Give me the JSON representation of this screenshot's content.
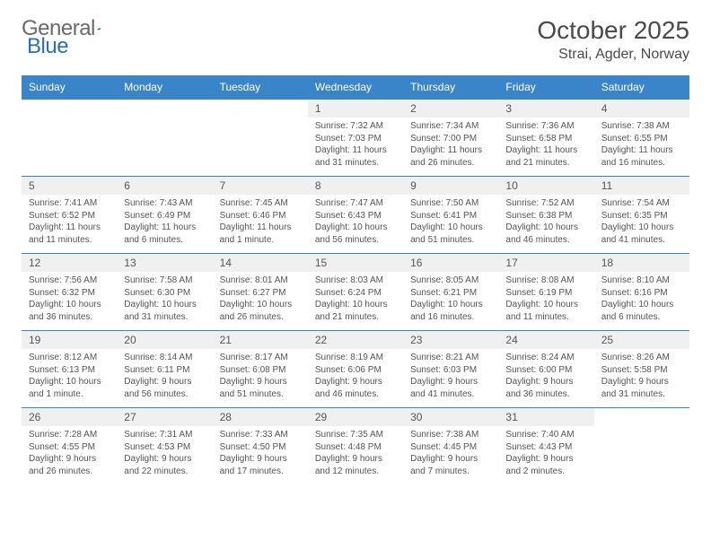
{
  "logo": {
    "part1": "General",
    "part2": "Blue"
  },
  "title": "October 2025",
  "location": "Strai, Agder, Norway",
  "colors": {
    "header_bg": "#3a85c8",
    "header_text": "#ffffff",
    "border": "#3a85c8",
    "daynum_bg": "#f0f0f0",
    "body_text": "#555555",
    "logo_gray": "#6a6a6a",
    "logo_blue": "#2a6fb5",
    "page_bg": "#ffffff"
  },
  "typography": {
    "title_fontsize": 28,
    "location_fontsize": 16,
    "logo_fontsize": 24,
    "header_fontsize": 12,
    "daynum_fontsize": 12,
    "info_fontsize": 10
  },
  "weekdays": [
    "Sunday",
    "Monday",
    "Tuesday",
    "Wednesday",
    "Thursday",
    "Friday",
    "Saturday"
  ],
  "weeks": [
    [
      null,
      null,
      null,
      {
        "n": "1",
        "sr": "Sunrise: 7:32 AM",
        "ss": "Sunset: 7:03 PM",
        "d1": "Daylight: 11 hours",
        "d2": "and 31 minutes."
      },
      {
        "n": "2",
        "sr": "Sunrise: 7:34 AM",
        "ss": "Sunset: 7:00 PM",
        "d1": "Daylight: 11 hours",
        "d2": "and 26 minutes."
      },
      {
        "n": "3",
        "sr": "Sunrise: 7:36 AM",
        "ss": "Sunset: 6:58 PM",
        "d1": "Daylight: 11 hours",
        "d2": "and 21 minutes."
      },
      {
        "n": "4",
        "sr": "Sunrise: 7:38 AM",
        "ss": "Sunset: 6:55 PM",
        "d1": "Daylight: 11 hours",
        "d2": "and 16 minutes."
      }
    ],
    [
      {
        "n": "5",
        "sr": "Sunrise: 7:41 AM",
        "ss": "Sunset: 6:52 PM",
        "d1": "Daylight: 11 hours",
        "d2": "and 11 minutes."
      },
      {
        "n": "6",
        "sr": "Sunrise: 7:43 AM",
        "ss": "Sunset: 6:49 PM",
        "d1": "Daylight: 11 hours",
        "d2": "and 6 minutes."
      },
      {
        "n": "7",
        "sr": "Sunrise: 7:45 AM",
        "ss": "Sunset: 6:46 PM",
        "d1": "Daylight: 11 hours",
        "d2": "and 1 minute."
      },
      {
        "n": "8",
        "sr": "Sunrise: 7:47 AM",
        "ss": "Sunset: 6:43 PM",
        "d1": "Daylight: 10 hours",
        "d2": "and 56 minutes."
      },
      {
        "n": "9",
        "sr": "Sunrise: 7:50 AM",
        "ss": "Sunset: 6:41 PM",
        "d1": "Daylight: 10 hours",
        "d2": "and 51 minutes."
      },
      {
        "n": "10",
        "sr": "Sunrise: 7:52 AM",
        "ss": "Sunset: 6:38 PM",
        "d1": "Daylight: 10 hours",
        "d2": "and 46 minutes."
      },
      {
        "n": "11",
        "sr": "Sunrise: 7:54 AM",
        "ss": "Sunset: 6:35 PM",
        "d1": "Daylight: 10 hours",
        "d2": "and 41 minutes."
      }
    ],
    [
      {
        "n": "12",
        "sr": "Sunrise: 7:56 AM",
        "ss": "Sunset: 6:32 PM",
        "d1": "Daylight: 10 hours",
        "d2": "and 36 minutes."
      },
      {
        "n": "13",
        "sr": "Sunrise: 7:58 AM",
        "ss": "Sunset: 6:30 PM",
        "d1": "Daylight: 10 hours",
        "d2": "and 31 minutes."
      },
      {
        "n": "14",
        "sr": "Sunrise: 8:01 AM",
        "ss": "Sunset: 6:27 PM",
        "d1": "Daylight: 10 hours",
        "d2": "and 26 minutes."
      },
      {
        "n": "15",
        "sr": "Sunrise: 8:03 AM",
        "ss": "Sunset: 6:24 PM",
        "d1": "Daylight: 10 hours",
        "d2": "and 21 minutes."
      },
      {
        "n": "16",
        "sr": "Sunrise: 8:05 AM",
        "ss": "Sunset: 6:21 PM",
        "d1": "Daylight: 10 hours",
        "d2": "and 16 minutes."
      },
      {
        "n": "17",
        "sr": "Sunrise: 8:08 AM",
        "ss": "Sunset: 6:19 PM",
        "d1": "Daylight: 10 hours",
        "d2": "and 11 minutes."
      },
      {
        "n": "18",
        "sr": "Sunrise: 8:10 AM",
        "ss": "Sunset: 6:16 PM",
        "d1": "Daylight: 10 hours",
        "d2": "and 6 minutes."
      }
    ],
    [
      {
        "n": "19",
        "sr": "Sunrise: 8:12 AM",
        "ss": "Sunset: 6:13 PM",
        "d1": "Daylight: 10 hours",
        "d2": "and 1 minute."
      },
      {
        "n": "20",
        "sr": "Sunrise: 8:14 AM",
        "ss": "Sunset: 6:11 PM",
        "d1": "Daylight: 9 hours",
        "d2": "and 56 minutes."
      },
      {
        "n": "21",
        "sr": "Sunrise: 8:17 AM",
        "ss": "Sunset: 6:08 PM",
        "d1": "Daylight: 9 hours",
        "d2": "and 51 minutes."
      },
      {
        "n": "22",
        "sr": "Sunrise: 8:19 AM",
        "ss": "Sunset: 6:06 PM",
        "d1": "Daylight: 9 hours",
        "d2": "and 46 minutes."
      },
      {
        "n": "23",
        "sr": "Sunrise: 8:21 AM",
        "ss": "Sunset: 6:03 PM",
        "d1": "Daylight: 9 hours",
        "d2": "and 41 minutes."
      },
      {
        "n": "24",
        "sr": "Sunrise: 8:24 AM",
        "ss": "Sunset: 6:00 PM",
        "d1": "Daylight: 9 hours",
        "d2": "and 36 minutes."
      },
      {
        "n": "25",
        "sr": "Sunrise: 8:26 AM",
        "ss": "Sunset: 5:58 PM",
        "d1": "Daylight: 9 hours",
        "d2": "and 31 minutes."
      }
    ],
    [
      {
        "n": "26",
        "sr": "Sunrise: 7:28 AM",
        "ss": "Sunset: 4:55 PM",
        "d1": "Daylight: 9 hours",
        "d2": "and 26 minutes."
      },
      {
        "n": "27",
        "sr": "Sunrise: 7:31 AM",
        "ss": "Sunset: 4:53 PM",
        "d1": "Daylight: 9 hours",
        "d2": "and 22 minutes."
      },
      {
        "n": "28",
        "sr": "Sunrise: 7:33 AM",
        "ss": "Sunset: 4:50 PM",
        "d1": "Daylight: 9 hours",
        "d2": "and 17 minutes."
      },
      {
        "n": "29",
        "sr": "Sunrise: 7:35 AM",
        "ss": "Sunset: 4:48 PM",
        "d1": "Daylight: 9 hours",
        "d2": "and 12 minutes."
      },
      {
        "n": "30",
        "sr": "Sunrise: 7:38 AM",
        "ss": "Sunset: 4:45 PM",
        "d1": "Daylight: 9 hours",
        "d2": "and 7 minutes."
      },
      {
        "n": "31",
        "sr": "Sunrise: 7:40 AM",
        "ss": "Sunset: 4:43 PM",
        "d1": "Daylight: 9 hours",
        "d2": "and 2 minutes."
      },
      null
    ]
  ]
}
